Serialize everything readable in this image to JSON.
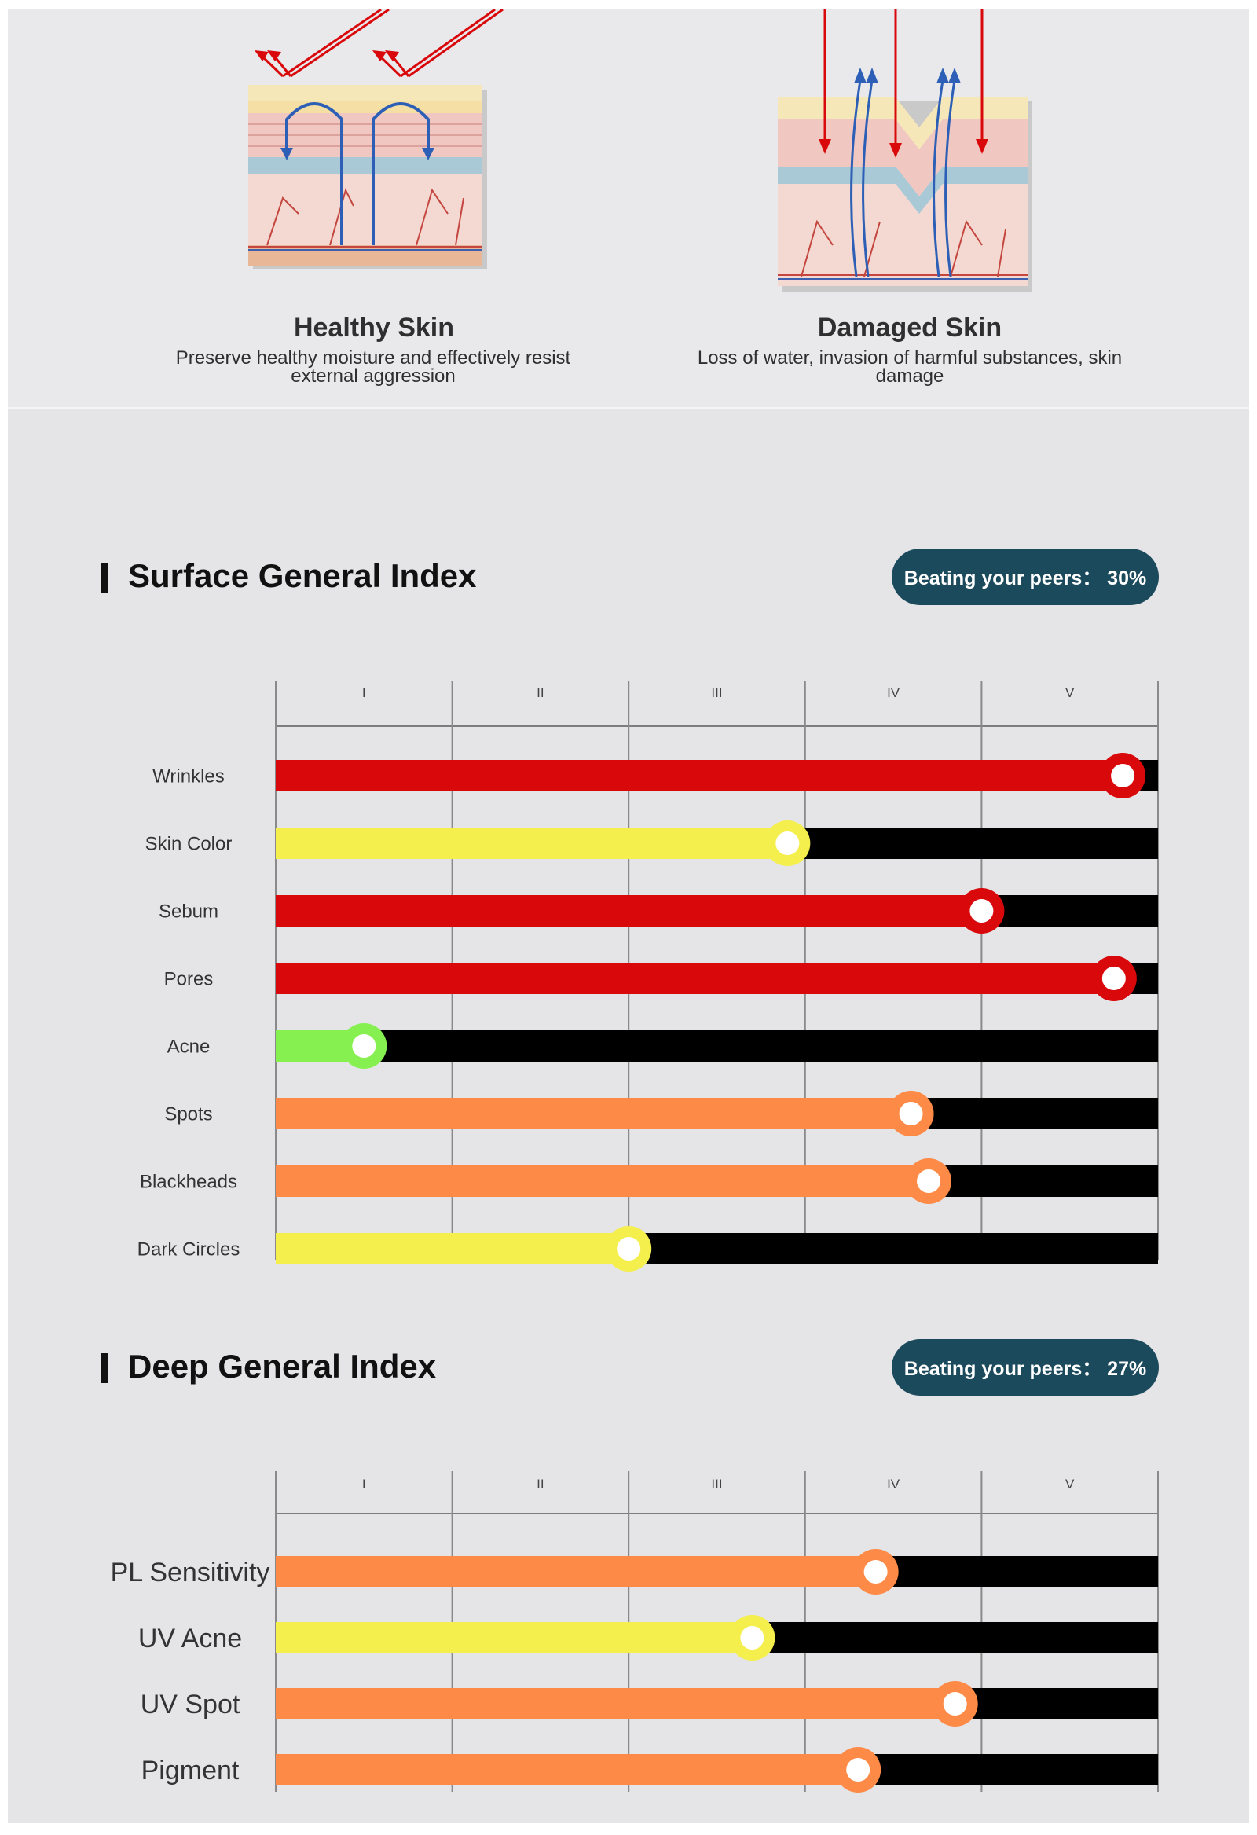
{
  "hero": {
    "healthy": {
      "title": "Healthy Skin",
      "desc": "Preserve healthy moisture and effectively resist external aggression"
    },
    "damaged": {
      "title": "Damaged Skin",
      "desc": "Loss of water, invasion of harmful substances, skin damage"
    }
  },
  "surface": {
    "title": "Surface General Index",
    "badge": "Beating your peers： 30%"
  },
  "deep": {
    "title": "Deep General Index",
    "badge": "Beating your peers： 27%"
  },
  "colors": {
    "red": "#d9090b",
    "yellow": "#f4ef4d",
    "green": "#86f050",
    "orange": "#fd8a47",
    "track": "#000000",
    "badge": "#1b4a5c"
  },
  "chart_data": [
    {
      "type": "bar",
      "orientation": "horizontal",
      "title": "Surface General Index",
      "xlim": [
        0,
        5
      ],
      "tick_labels": [
        "I",
        "II",
        "III",
        "IV",
        "V"
      ],
      "categories": [
        "Wrinkles",
        "Skin Color",
        "Sebum",
        "Pores",
        "Acne",
        "Spots",
        "Blackheads",
        "Dark Circles"
      ],
      "values": [
        4.8,
        2.9,
        4.0,
        4.75,
        0.5,
        3.6,
        3.7,
        2.0
      ],
      "colors": [
        "red",
        "yellow",
        "red",
        "red",
        "green",
        "orange",
        "orange",
        "yellow"
      ]
    },
    {
      "type": "bar",
      "orientation": "horizontal",
      "title": "Deep General Index",
      "xlim": [
        0,
        5
      ],
      "tick_labels": [
        "I",
        "II",
        "III",
        "IV",
        "V"
      ],
      "categories": [
        "PL Sensitivity",
        "UV Acne",
        "UV Spot",
        "Pigment"
      ],
      "values": [
        3.4,
        2.7,
        3.85,
        3.3
      ],
      "colors": [
        "orange",
        "yellow",
        "orange",
        "orange"
      ]
    }
  ]
}
